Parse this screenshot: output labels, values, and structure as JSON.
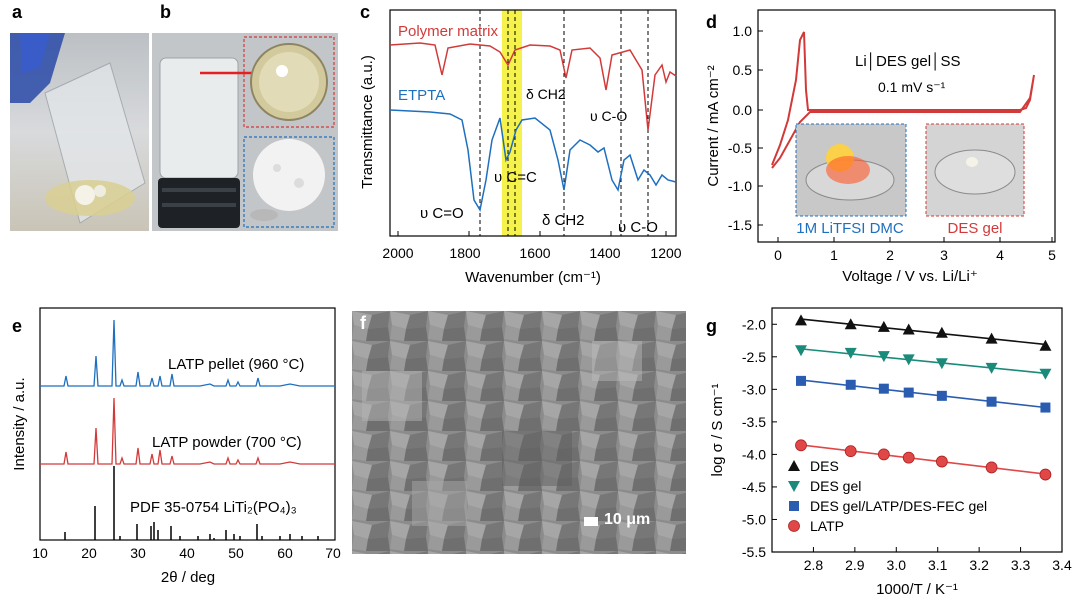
{
  "panel_labels": {
    "a": "a",
    "b": "b",
    "c": "c",
    "d": "d",
    "e": "e",
    "f": "f",
    "g": "g"
  },
  "colors": {
    "blue": "#1f6fbf",
    "red": "#d23a3a",
    "black": "#111111",
    "teal": "#1a8a7a",
    "navy": "#2a5cb0",
    "yellow": "#f3f02b"
  },
  "panel_c": {
    "ylabel": "Transmittance (a.u.)",
    "xlabel": "Wavenumber (cm⁻¹)",
    "ticks": [
      "2000",
      "1800",
      "1600",
      "1400",
      "1200"
    ],
    "label_polymer": "Polymer matrix",
    "label_etpta": "ETPTA",
    "ann_dch2_top": "δ CH2",
    "ann_vco_top": "υ C-O",
    "ann_vcc": "υ C=C",
    "ann_vco2": "υ C=O",
    "ann_dch2_bot": "δ CH2",
    "ann_vco_bot": "υ C-O"
  },
  "panel_d": {
    "ylabel": "Current / mA cm⁻²",
    "xlabel": "Voltage / V vs. Li/Li⁺",
    "xticks": [
      "0",
      "1",
      "2",
      "3",
      "4",
      "5"
    ],
    "yticks": [
      "1.0",
      "0.5",
      "0.0",
      "-0.5",
      "-1.0",
      "-1.5"
    ],
    "cell_label": "Li│DES gel│SS",
    "rate_label": "0.1 mV s⁻¹",
    "photo1_caption": "1M LiTFSI DMC",
    "photo2_caption": "DES gel"
  },
  "panel_e": {
    "ylabel": "Intensity / a.u.",
    "xlabel": "2θ / deg",
    "xticks": [
      "10",
      "20",
      "30",
      "40",
      "50",
      "60",
      "70"
    ],
    "label_pellet": "LATP pellet (960 °C)",
    "label_powder": "LATP powder (700 °C)",
    "label_pdf": "PDF 35-0754 LiTi₂(PO₄)₃"
  },
  "panel_f": {
    "scale_bar": "10 μm"
  },
  "chart_data": [
    {
      "type": "scatter",
      "panel": "g",
      "xlabel": "1000/T / K⁻¹",
      "ylabel": "log σ / S cm⁻¹",
      "xlim": [
        2.7,
        3.4
      ],
      "ylim": [
        -5.5,
        -1.75
      ],
      "xticks": [
        "2.8",
        "2.9",
        "3.0",
        "3.1",
        "3.2",
        "3.3",
        "3.4"
      ],
      "yticks": [
        "-2.0",
        "-2.5",
        "-3.0",
        "-3.5",
        "-4.0",
        "-4.5",
        "-5.0",
        "-5.5"
      ],
      "legend_position": "bottom-left",
      "series": [
        {
          "name": "DES",
          "marker": "triangle-up",
          "color": "#111111",
          "x": [
            2.77,
            2.89,
            2.97,
            3.03,
            3.11,
            3.23,
            3.36
          ],
          "y": [
            -1.94,
            -2.0,
            -2.04,
            -2.08,
            -2.13,
            -2.22,
            -2.33
          ]
        },
        {
          "name": "DES gel",
          "marker": "triangle-down",
          "color": "#1a8a7a",
          "x": [
            2.77,
            2.89,
            2.97,
            3.03,
            3.11,
            3.23,
            3.36
          ],
          "y": [
            -2.4,
            -2.44,
            -2.49,
            -2.54,
            -2.6,
            -2.67,
            -2.76
          ]
        },
        {
          "name": "DES gel/LATP/DES-FEC gel",
          "marker": "square",
          "color": "#2a5cb0",
          "x": [
            2.77,
            2.89,
            2.97,
            3.03,
            3.11,
            3.23,
            3.36
          ],
          "y": [
            -2.87,
            -2.93,
            -2.99,
            -3.05,
            -3.1,
            -3.19,
            -3.28
          ]
        },
        {
          "name": "LATP",
          "marker": "circle",
          "color": "#e04848",
          "x": [
            2.77,
            2.89,
            2.97,
            3.03,
            3.11,
            3.23,
            3.36
          ],
          "y": [
            -3.86,
            -3.95,
            -4.0,
            -4.05,
            -4.11,
            -4.2,
            -4.31
          ]
        }
      ]
    }
  ]
}
